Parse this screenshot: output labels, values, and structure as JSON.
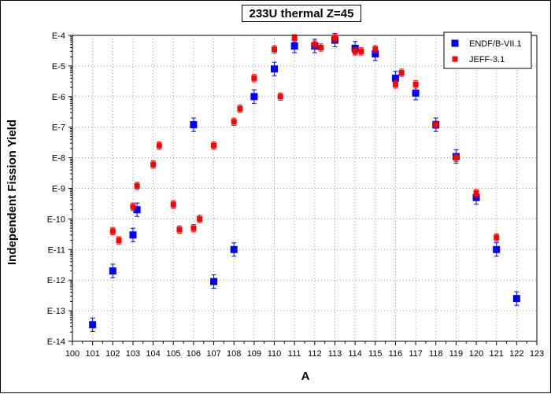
{
  "chart_data": {
    "type": "scatter",
    "title": "233U thermal Z=45",
    "xlabel": "A",
    "ylabel": "Independent Fission Yield",
    "xlim": [
      100,
      123
    ],
    "ylim_exp": [
      -14,
      -4
    ],
    "y_scale": "log",
    "grid": true,
    "legend_position": "top-right",
    "x_ticks": [
      "100",
      "101",
      "102",
      "103",
      "104",
      "105",
      "106",
      "107",
      "108",
      "109",
      "110",
      "111",
      "112",
      "113",
      "114",
      "115",
      "116",
      "117",
      "118",
      "119",
      "120",
      "121",
      "122",
      "123"
    ],
    "y_ticks": [
      "E-4",
      "E-5",
      "E-6",
      "E-7",
      "E-8",
      "E-9",
      "E-10",
      "E-11",
      "E-12",
      "E-13",
      "E-14"
    ],
    "series": [
      {
        "name": "ENDF/B-VII.1",
        "color": "#0000ff",
        "marker": "square",
        "points": [
          {
            "x": 101,
            "y": 3.5e-14
          },
          {
            "x": 102,
            "y": 2e-12
          },
          {
            "x": 103,
            "y": 3e-11
          },
          {
            "x": 103.2,
            "y": 2e-10
          },
          {
            "x": 106,
            "y": 1.2e-07
          },
          {
            "x": 107,
            "y": 9e-13
          },
          {
            "x": 108,
            "y": 1e-11
          },
          {
            "x": 109,
            "y": 1e-06
          },
          {
            "x": 110,
            "y": 8e-06
          },
          {
            "x": 111,
            "y": 4.5e-05
          },
          {
            "x": 112,
            "y": 4.5e-05
          },
          {
            "x": 113,
            "y": 7e-05
          },
          {
            "x": 114,
            "y": 3.8e-05
          },
          {
            "x": 115,
            "y": 2.5e-05
          },
          {
            "x": 116,
            "y": 4e-06
          },
          {
            "x": 117,
            "y": 1.3e-06
          },
          {
            "x": 118,
            "y": 1.2e-07
          },
          {
            "x": 119,
            "y": 1.1e-08
          },
          {
            "x": 120,
            "y": 5e-10
          },
          {
            "x": 121,
            "y": 1e-11
          },
          {
            "x": 122,
            "y": 2.5e-13
          }
        ]
      },
      {
        "name": "JEFF-3.1",
        "color": "#ff0000",
        "marker": "square",
        "points": [
          {
            "x": 102,
            "y": 4e-11
          },
          {
            "x": 102.3,
            "y": 2e-11
          },
          {
            "x": 103,
            "y": 2.5e-10
          },
          {
            "x": 103.2,
            "y": 1.2e-09
          },
          {
            "x": 104,
            "y": 6e-09
          },
          {
            "x": 104.3,
            "y": 2.5e-08
          },
          {
            "x": 105,
            "y": 3e-10
          },
          {
            "x": 105.3,
            "y": 4.5e-11
          },
          {
            "x": 106,
            "y": 5e-11
          },
          {
            "x": 106.3,
            "y": 1e-10
          },
          {
            "x": 107,
            "y": 2.5e-08
          },
          {
            "x": 108,
            "y": 1.5e-07
          },
          {
            "x": 108.3,
            "y": 4e-07
          },
          {
            "x": 109,
            "y": 4e-06
          },
          {
            "x": 110,
            "y": 3.5e-05
          },
          {
            "x": 110.3,
            "y": 1e-06
          },
          {
            "x": 111,
            "y": 8e-05
          },
          {
            "x": 112,
            "y": 5e-05
          },
          {
            "x": 112.3,
            "y": 4e-05
          },
          {
            "x": 113,
            "y": 8.5e-05
          },
          {
            "x": 114,
            "y": 3e-05
          },
          {
            "x": 114.3,
            "y": 3e-05
          },
          {
            "x": 115,
            "y": 3.5e-05
          },
          {
            "x": 116,
            "y": 2.5e-06
          },
          {
            "x": 116.3,
            "y": 6e-06
          },
          {
            "x": 117,
            "y": 2.5e-06
          },
          {
            "x": 118,
            "y": 1.2e-07
          },
          {
            "x": 119,
            "y": 1e-08
          },
          {
            "x": 120,
            "y": 7e-10
          },
          {
            "x": 121,
            "y": 2.5e-11
          }
        ]
      }
    ]
  }
}
